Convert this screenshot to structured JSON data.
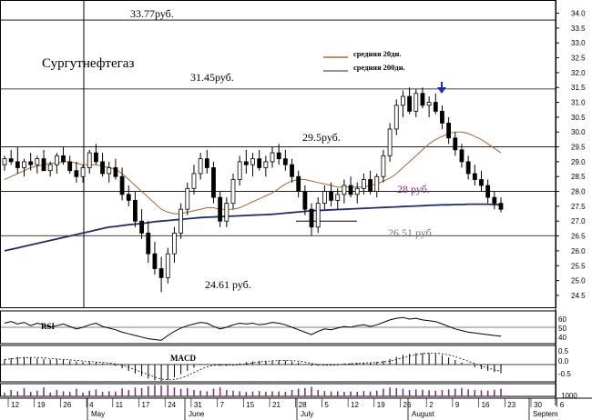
{
  "chart_data": {
    "type": "candlestick",
    "title": "Сургутнефтегаз",
    "y_ticks": [
      24.5,
      25.0,
      25.5,
      26.0,
      26.5,
      27.0,
      27.5,
      28.0,
      28.5,
      29.0,
      29.5,
      30.0,
      30.5,
      31.0,
      31.5,
      32.0,
      32.5,
      33.0,
      33.5,
      34.0
    ],
    "y_tick_labels": [
      "24.5",
      "25.0",
      "25.5",
      "26.0",
      "26.5",
      "27.0",
      "27.5",
      "28.0",
      "28.5",
      "29.0",
      "29.5",
      "30.0",
      "30.5",
      "31.0",
      "31.5",
      "32.0",
      "32.5",
      "33.0",
      "33.5",
      "34.0"
    ],
    "ylim": [
      24.1,
      34.2
    ],
    "x_day_labels": [
      "12",
      "19",
      "26",
      "4",
      "11",
      "17",
      "24",
      "31",
      "7",
      "15",
      "21",
      "28",
      "5",
      "12",
      "19",
      "26",
      "2",
      "9",
      "16",
      "23",
      "30",
      "6"
    ],
    "x_month_labels": [
      "May",
      "June",
      "July",
      "August",
      "Septem"
    ],
    "legend": [
      {
        "name": "средняя 20дн.",
        "color": "#b0652a"
      },
      {
        "name": "средняя 200дн.",
        "color": "#6070a0"
      }
    ],
    "levels": [
      {
        "value": 33.77,
        "label": "33.77руб.",
        "color": "#000000"
      },
      {
        "value": 31.45,
        "label": "31.45руб.",
        "color": "#000000"
      },
      {
        "value": 29.5,
        "label": "29.5руб.",
        "color": "#000000"
      },
      {
        "value": 28.0,
        "label": "28  руб.",
        "color": "#8a2b86"
      },
      {
        "value": 26.51,
        "label": "26.51  руб.",
        "color": "#666666"
      },
      {
        "value": 24.61,
        "label": "24.61  руб.",
        "color": "#000000"
      }
    ],
    "indicators": {
      "rsi_label": "RSI",
      "rsi_ticks": [
        "60",
        "50",
        "40"
      ],
      "macd_label": "MACD",
      "macd_ticks": [
        "0.5",
        "0.0",
        "-0.5"
      ],
      "volume_tick": "1000"
    },
    "series": [
      {
        "name": "price",
        "ohlc": [
          [
            28.9,
            29.2,
            28.7,
            29.1
          ],
          [
            29.1,
            29.4,
            28.9,
            29.0
          ],
          [
            29.0,
            29.5,
            28.6,
            28.8
          ],
          [
            28.8,
            29.1,
            28.5,
            29.0
          ],
          [
            29.0,
            29.3,
            28.7,
            28.9
          ],
          [
            28.9,
            29.2,
            28.6,
            29.1
          ],
          [
            29.1,
            29.4,
            28.8,
            28.7
          ],
          [
            28.7,
            29.0,
            28.5,
            28.9
          ],
          [
            28.9,
            29.3,
            28.6,
            29.2
          ],
          [
            29.2,
            29.5,
            28.9,
            29.0
          ],
          [
            29.0,
            29.2,
            28.6,
            28.7
          ],
          [
            28.7,
            29.0,
            28.3,
            28.5
          ],
          [
            28.5,
            28.9,
            28.3,
            28.8
          ],
          [
            28.8,
            29.4,
            28.6,
            29.3
          ],
          [
            29.3,
            29.6,
            28.9,
            29.0
          ],
          [
            29.0,
            29.3,
            28.5,
            28.6
          ],
          [
            28.6,
            29.0,
            28.3,
            28.8
          ],
          [
            28.8,
            29.1,
            28.4,
            28.5
          ],
          [
            28.5,
            28.8,
            27.7,
            27.9
          ],
          [
            27.9,
            28.2,
            27.5,
            27.7
          ],
          [
            27.7,
            28.0,
            26.8,
            27.0
          ],
          [
            27.0,
            27.4,
            26.4,
            26.6
          ],
          [
            26.6,
            27.0,
            25.6,
            25.9
          ],
          [
            25.9,
            26.3,
            25.2,
            25.4
          ],
          [
            25.4,
            25.8,
            24.61,
            25.1
          ],
          [
            25.1,
            26.1,
            24.9,
            25.9
          ],
          [
            25.9,
            26.8,
            25.6,
            26.6
          ],
          [
            26.6,
            27.6,
            26.4,
            27.4
          ],
          [
            27.4,
            28.3,
            27.2,
            28.1
          ],
          [
            28.1,
            28.9,
            27.9,
            28.6
          ],
          [
            28.6,
            29.3,
            28.4,
            29.1
          ],
          [
            29.1,
            29.4,
            28.6,
            28.8
          ],
          [
            28.8,
            29.0,
            27.6,
            27.8
          ],
          [
            27.8,
            28.0,
            26.8,
            27.0
          ],
          [
            27.0,
            27.8,
            26.8,
            27.6
          ],
          [
            27.6,
            28.6,
            27.4,
            28.4
          ],
          [
            28.4,
            29.2,
            28.2,
            29.0
          ],
          [
            29.0,
            29.4,
            28.6,
            28.9
          ],
          [
            28.9,
            29.3,
            28.5,
            29.1
          ],
          [
            29.1,
            29.4,
            28.7,
            28.8
          ],
          [
            28.8,
            29.2,
            28.5,
            29.0
          ],
          [
            29.0,
            29.5,
            28.8,
            29.3
          ],
          [
            29.3,
            29.6,
            28.9,
            29.1
          ],
          [
            29.1,
            29.4,
            28.7,
            28.9
          ],
          [
            28.9,
            29.1,
            28.3,
            28.5
          ],
          [
            28.5,
            28.7,
            27.8,
            28.0
          ],
          [
            28.0,
            28.2,
            27.2,
            27.4
          ],
          [
            27.4,
            27.6,
            26.51,
            26.8
          ],
          [
            26.8,
            27.8,
            26.6,
            27.6
          ],
          [
            27.6,
            28.2,
            27.4,
            28.0
          ],
          [
            28.0,
            28.3,
            27.5,
            27.7
          ],
          [
            27.7,
            28.1,
            27.4,
            27.9
          ],
          [
            27.9,
            28.4,
            27.6,
            28.2
          ],
          [
            28.2,
            28.5,
            27.8,
            27.9
          ],
          [
            27.9,
            28.3,
            27.6,
            28.1
          ],
          [
            28.1,
            28.6,
            27.9,
            28.4
          ],
          [
            28.4,
            28.7,
            27.9,
            28.0
          ],
          [
            28.0,
            28.6,
            27.8,
            28.5
          ],
          [
            28.5,
            29.4,
            28.3,
            29.2
          ],
          [
            29.2,
            30.3,
            29.0,
            30.1
          ],
          [
            30.1,
            31.1,
            29.9,
            30.9
          ],
          [
            30.9,
            31.4,
            30.5,
            31.2
          ],
          [
            31.2,
            31.5,
            30.6,
            30.7
          ],
          [
            30.7,
            31.45,
            30.5,
            31.3
          ],
          [
            31.3,
            31.5,
            30.8,
            30.9
          ],
          [
            30.9,
            31.2,
            30.5,
            31.0
          ],
          [
            31.0,
            31.3,
            30.6,
            30.7
          ],
          [
            30.7,
            30.9,
            30.1,
            30.3
          ],
          [
            30.3,
            30.5,
            29.6,
            29.8
          ],
          [
            29.8,
            30.0,
            29.2,
            29.4
          ],
          [
            29.4,
            29.6,
            28.8,
            29.0
          ],
          [
            29.0,
            29.2,
            28.4,
            28.6
          ],
          [
            28.6,
            28.9,
            28.2,
            28.4
          ],
          [
            28.4,
            28.7,
            28.0,
            28.2
          ],
          [
            28.2,
            28.4,
            27.6,
            27.8
          ],
          [
            27.8,
            28.0,
            27.4,
            27.6
          ],
          [
            27.6,
            27.8,
            27.3,
            27.4
          ]
        ]
      },
      {
        "name": "средняя 20дн.",
        "values": [
          28.4,
          28.5,
          28.6,
          28.7,
          28.8,
          28.85,
          28.9,
          28.95,
          28.95,
          29.0,
          29.0,
          28.95,
          28.9,
          28.9,
          28.9,
          28.85,
          28.8,
          28.75,
          28.6,
          28.4,
          28.2,
          28.0,
          27.8,
          27.6,
          27.4,
          27.3,
          27.25,
          27.25,
          27.3,
          27.35,
          27.4,
          27.45,
          27.45,
          27.4,
          27.4,
          27.4,
          27.45,
          27.55,
          27.65,
          27.75,
          27.85,
          27.95,
          28.1,
          28.25,
          28.35,
          28.4,
          28.4,
          28.35,
          28.3,
          28.25,
          28.2,
          28.15,
          28.15,
          28.15,
          28.15,
          28.15,
          28.2,
          28.25,
          28.35,
          28.45,
          28.6,
          28.8,
          29.0,
          29.2,
          29.4,
          29.6,
          29.75,
          29.85,
          29.95,
          30.0,
          30.0,
          29.95,
          29.85,
          29.75,
          29.6,
          29.45,
          29.3
        ]
      },
      {
        "name": "средняя 200дн.",
        "values": [
          26.0,
          26.05,
          26.1,
          26.15,
          26.2,
          26.25,
          26.3,
          26.35,
          26.4,
          26.45,
          26.5,
          26.55,
          26.6,
          26.65,
          26.7,
          26.75,
          26.8,
          26.82,
          26.85,
          26.88,
          26.9,
          26.92,
          26.95,
          26.98,
          27.0,
          27.02,
          27.04,
          27.06,
          27.08,
          27.1,
          27.12,
          27.13,
          27.14,
          27.15,
          27.16,
          27.17,
          27.18,
          27.19,
          27.2,
          27.21,
          27.22,
          27.23,
          27.25,
          27.27,
          27.29,
          27.31,
          27.33,
          27.35,
          27.36,
          27.37,
          27.38,
          27.39,
          27.4,
          27.41,
          27.42,
          27.43,
          27.44,
          27.45,
          27.46,
          27.47,
          27.48,
          27.49,
          27.5,
          27.51,
          27.52,
          27.53,
          27.54,
          27.55,
          27.55,
          27.56,
          27.56,
          27.57,
          27.57,
          27.57,
          27.57,
          27.56,
          27.55
        ]
      },
      {
        "name": "RSI",
        "values": [
          55,
          57,
          54,
          56,
          52,
          55,
          53,
          50,
          52,
          54,
          51,
          48,
          50,
          53,
          55,
          51,
          49,
          47,
          44,
          42,
          40,
          38,
          36,
          35,
          34,
          40,
          45,
          49,
          52,
          54,
          56,
          55,
          51,
          48,
          50,
          53,
          55,
          54,
          55,
          53,
          54,
          56,
          55,
          53,
          50,
          47,
          44,
          41,
          45,
          48,
          47,
          49,
          51,
          50,
          52,
          53,
          51,
          53,
          56,
          59,
          61,
          62,
          60,
          61,
          59,
          58,
          57,
          54,
          51,
          48,
          46,
          44,
          43,
          42,
          41,
          40,
          39
        ]
      },
      {
        "name": "MACD",
        "values": [
          0.2,
          0.25,
          0.3,
          0.3,
          0.28,
          0.25,
          0.22,
          0.2,
          0.2,
          0.18,
          0.15,
          0.12,
          0.1,
          0.1,
          0.08,
          0.05,
          0.02,
          -0.05,
          -0.15,
          -0.25,
          -0.35,
          -0.45,
          -0.55,
          -0.62,
          -0.65,
          -0.6,
          -0.5,
          -0.38,
          -0.25,
          -0.12,
          -0.02,
          0.02,
          0.0,
          -0.05,
          -0.05,
          0.0,
          0.05,
          0.1,
          0.12,
          0.14,
          0.15,
          0.16,
          0.17,
          0.16,
          0.12,
          0.08,
          0.02,
          -0.05,
          -0.05,
          -0.02,
          0.0,
          0.02,
          0.04,
          0.05,
          0.06,
          0.08,
          0.08,
          0.1,
          0.15,
          0.22,
          0.3,
          0.38,
          0.42,
          0.45,
          0.46,
          0.45,
          0.42,
          0.36,
          0.28,
          0.18,
          0.08,
          -0.02,
          -0.1,
          -0.18,
          -0.25,
          -0.3,
          -0.34
        ]
      },
      {
        "name": "Volume",
        "values": [
          300,
          500,
          400,
          650,
          350,
          450,
          700,
          300,
          500,
          400,
          350,
          600,
          300,
          450,
          550,
          350,
          400,
          380,
          620,
          500,
          700,
          650,
          800,
          900,
          850,
          900,
          700,
          600,
          650,
          500,
          450,
          400,
          600,
          700,
          500,
          450,
          400,
          350,
          380,
          420,
          360,
          400,
          380,
          350,
          500,
          600,
          650,
          750,
          500,
          420,
          380,
          400,
          360,
          380,
          350,
          420,
          380,
          450,
          600,
          700,
          650,
          600,
          500,
          550,
          520,
          480,
          450,
          500,
          550,
          600,
          650,
          550,
          500,
          480,
          450,
          520,
          600
        ]
      }
    ]
  }
}
